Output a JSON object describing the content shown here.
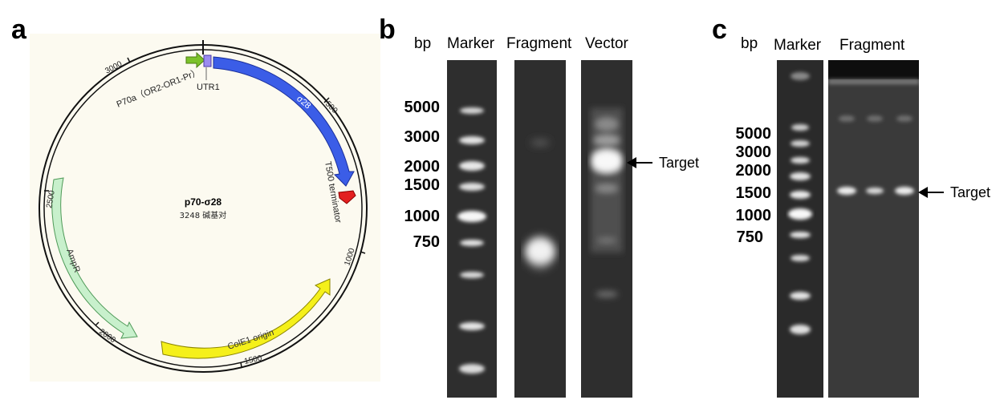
{
  "panels": {
    "a": "a",
    "b": "b",
    "c": "c"
  },
  "plasmid": {
    "name": "p70-σ28",
    "size_label": "3248 碱基对",
    "ticks": [
      "500",
      "1000",
      "1500",
      "2000",
      "2500",
      "3000"
    ],
    "features": {
      "promoter": "P70a（OR2-OR1-Pr）",
      "utr": "UTR1",
      "gene": "σ28",
      "terminator": "T500 terminator",
      "resistance": "AmpR",
      "origin": "ColE1 origin"
    },
    "colors": {
      "gene": "#3b5de7",
      "promoter": "#7cc22a",
      "utr": "#9b8cf0",
      "terminator": "#e32020",
      "resistance": "#c8f0cc",
      "origin": "#f5f01a"
    }
  },
  "gel_b": {
    "unit": "bp",
    "lanes": [
      "Marker",
      "Fragment",
      "Vector"
    ],
    "ladder": [
      "5000",
      "3000",
      "2000",
      "1500",
      "1000",
      "750"
    ],
    "target_label": "Target"
  },
  "gel_c": {
    "unit": "bp",
    "lanes": [
      "Marker",
      "Fragment"
    ],
    "ladder": [
      "5000",
      "3000",
      "2000",
      "1500",
      "1000",
      "750"
    ],
    "target_label": "Target"
  }
}
